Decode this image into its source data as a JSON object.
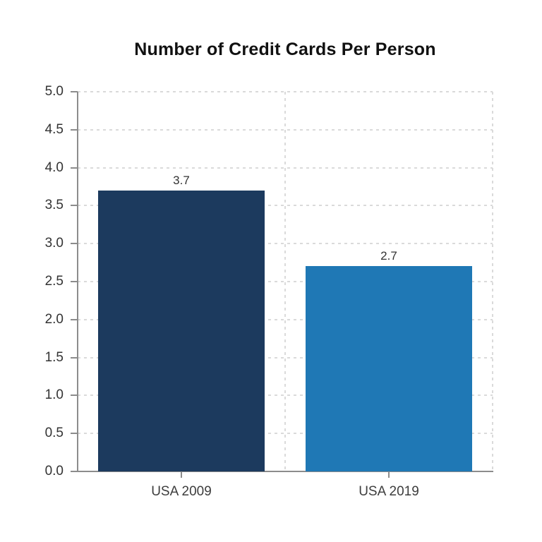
{
  "chart_data": {
    "type": "bar",
    "title": "Number of Credit Cards Per Person",
    "categories": [
      "USA 2009",
      "USA 2019"
    ],
    "values": [
      3.7,
      2.7
    ],
    "value_labels": [
      "3.7",
      "2.7"
    ],
    "bar_colors": [
      "#1c3a5e",
      "#1f78b5"
    ],
    "xlabel": "",
    "ylabel": "",
    "ylim": [
      0,
      5
    ],
    "ytick_step": 0.5,
    "ytick_labels": [
      "0.0",
      "0.5",
      "1.0",
      "1.5",
      "2.0",
      "2.5",
      "3.0",
      "3.5",
      "4.0",
      "4.5",
      "5.0"
    ],
    "grid": "dashed horizontal lines at each y tick and dashed vertical lines at category boundaries",
    "legend": "none"
  },
  "style": {
    "background_color": "#ffffff",
    "title_color": "#111111",
    "axis_color": "#8c8c8c",
    "gridline_color": "#dadada",
    "tick_label_color": "#333333",
    "category_label_color": "#3d3d3d",
    "value_label_color": "#333333"
  }
}
